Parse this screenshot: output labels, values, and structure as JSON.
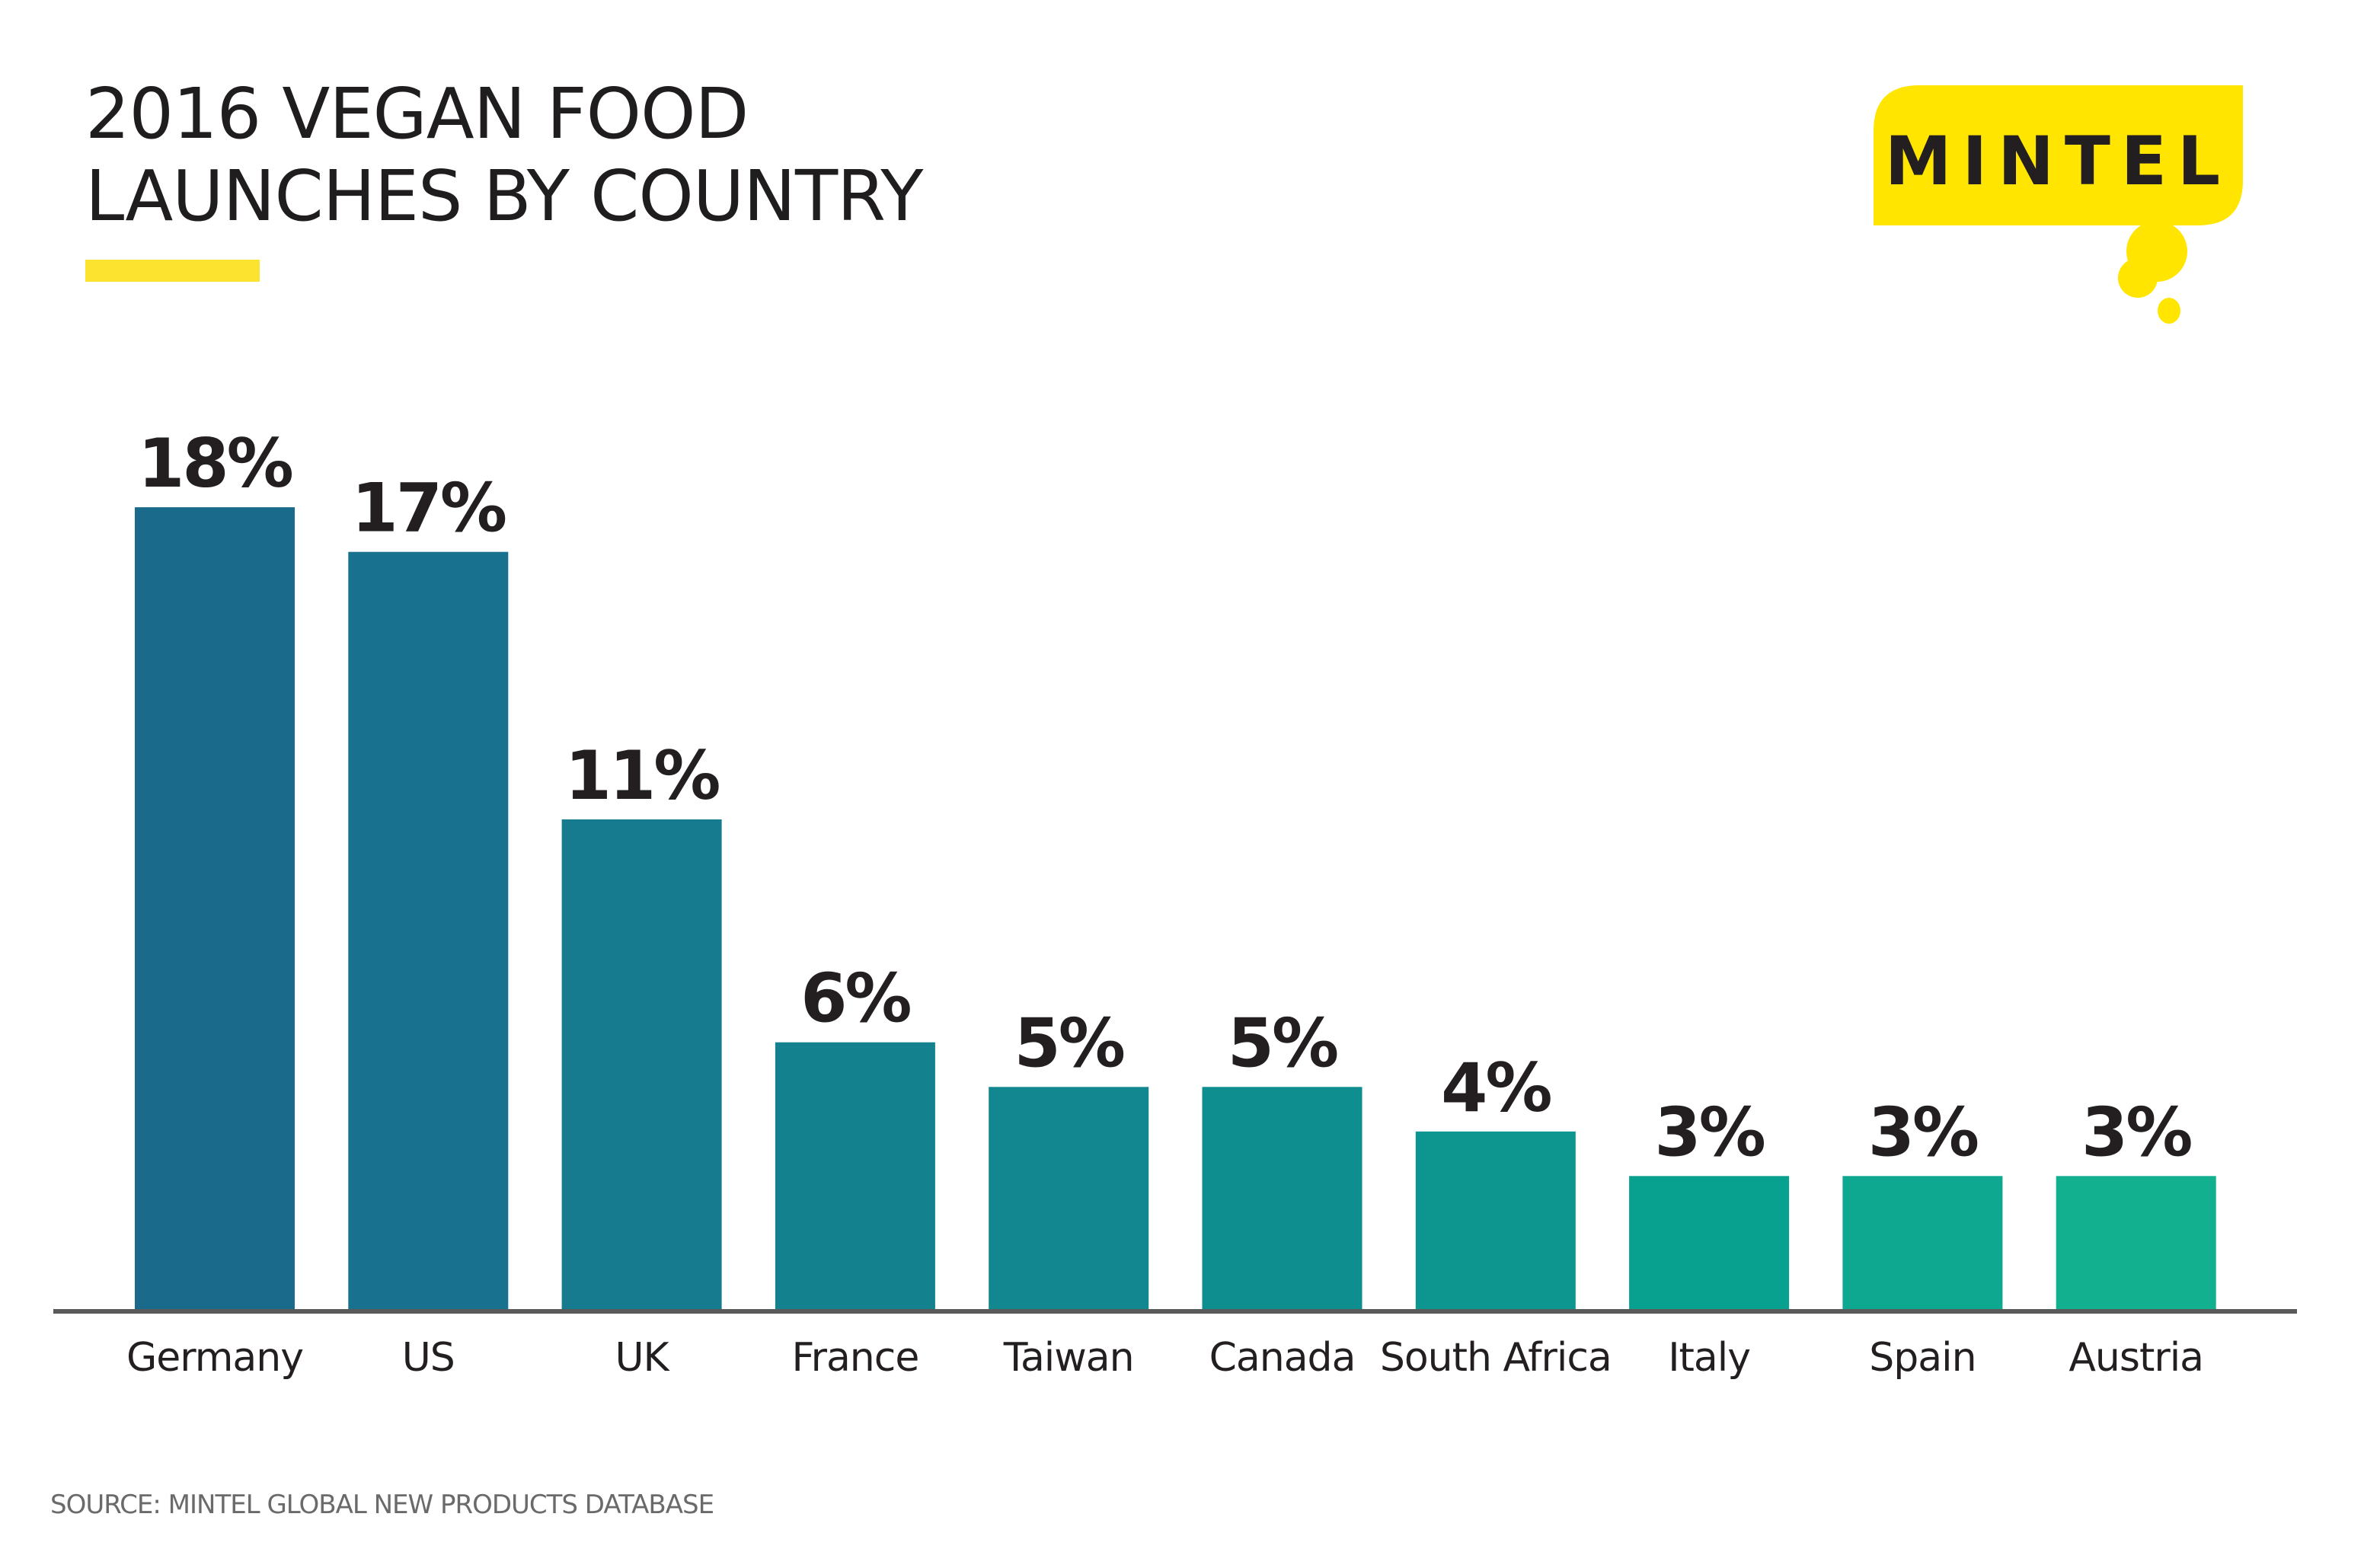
{
  "title": {
    "line1": "2016 VEGAN FOOD",
    "line2": "LAUNCHES BY COUNTRY"
  },
  "logo": {
    "text": "MINTEL",
    "color": "#ffe500"
  },
  "source": "SOURCE: MINTEL GLOBAL NEW PRODUCTS DATABASE",
  "chart_data": {
    "type": "bar",
    "title": "2016 VEGAN FOOD LAUNCHES BY COUNTRY",
    "xlabel": "",
    "ylabel": "",
    "ylim": [
      0,
      18
    ],
    "grid": false,
    "categories": [
      "Germany",
      "US",
      "UK",
      "France",
      "Taiwan",
      "Canada",
      "South Africa",
      "Italy",
      "Spain",
      "Austria"
    ],
    "values": [
      18,
      17,
      11,
      6,
      5,
      5,
      4,
      3,
      3,
      3
    ],
    "labels": [
      "18%",
      "17%",
      "11%",
      "6%",
      "5%",
      "5%",
      "4%",
      "3%",
      "3%",
      "3%"
    ],
    "colors": [
      "#1a6a8c",
      "#18718f",
      "#167b8e",
      "#14818f",
      "#12878f",
      "#0f8e8f",
      "#0c968f",
      "#08a08f",
      "#0ea790",
      "#13b08f"
    ],
    "axis_color": "#5a5a5a"
  }
}
